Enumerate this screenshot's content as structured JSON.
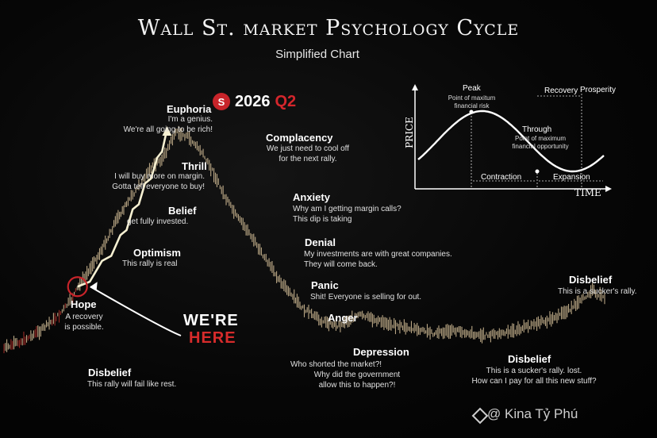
{
  "header": {
    "title": "Wall St. market Psychology Cycle",
    "subtitle": "Simplified Chart"
  },
  "badge": {
    "icon": "s-circle-icon",
    "year": "2026",
    "quarter": "Q2"
  },
  "marker": {
    "line1": "WE'RE",
    "line2": "HERE"
  },
  "phases": [
    {
      "name": "Hope",
      "quote": [
        "A recovery",
        "is possible."
      ]
    },
    {
      "name": "Optimism",
      "quote": [
        "This rally is real"
      ]
    },
    {
      "name": "Belief",
      "quote": [
        "get fully invested."
      ]
    },
    {
      "name": "Thrill",
      "quote": [
        "I will buy more on margin.",
        "Gotta tell everyone to buy!"
      ]
    },
    {
      "name": "Euphoria",
      "quote": [
        "I'm a genius.",
        "We're all going to be rich!"
      ]
    },
    {
      "name": "Complacency",
      "quote": [
        "We just need to cool off",
        "for the next rally."
      ]
    },
    {
      "name": "Anxiety",
      "quote": [
        "Why am I getting margin calls?",
        "This dip is taking"
      ]
    },
    {
      "name": "Denial",
      "quote": [
        "My investments are with great companies.",
        "They will come back."
      ]
    },
    {
      "name": "Panic",
      "quote": [
        "Shit! Everyone is selling for out."
      ]
    },
    {
      "name": "Anger",
      "quote": []
    },
    {
      "name": "Depression",
      "quote": [
        "Who shorted the market?!",
        "Why did the government",
        "allow this to happen?!"
      ]
    },
    {
      "name": "Disbelief",
      "quote": [
        "This is a sucker's  rally. lost.",
        "How can I pay for all this new stuff?"
      ]
    },
    {
      "name": "Disbelief",
      "quote": [
        "This is a sucker's rally."
      ]
    },
    {
      "name": "Disbelief",
      "quote": [
        "This rally will fail like rest."
      ]
    }
  ],
  "inset": {
    "xlabel": "TIME",
    "ylabel": "PRICE",
    "peak": "Peak",
    "peak_note": [
      "Point of maxitum",
      "financial risk"
    ],
    "through": "Through",
    "through_note": [
      "Point of maximum",
      "financial opportunity"
    ],
    "recovery": "Recovery",
    "prosperity": "Prosperity",
    "contraction": "Contraction",
    "expansion": "Expansion"
  },
  "watermark": "@ Kina Tỷ Phú",
  "colors": {
    "accent": "#c8242a",
    "price_line": "#d8c29a",
    "projection": "#f6f0d2",
    "text": "#ffffff"
  },
  "chart_data": {
    "type": "line",
    "title": "Wall St. market Psychology Cycle",
    "subtitle": "Simplified Chart",
    "series": [
      {
        "values": [
          [
            0,
            11
          ],
          [
            15,
            14
          ],
          [
            30,
            18
          ],
          [
            45,
            24
          ],
          [
            55,
            30
          ],
          [
            62,
            36
          ],
          [
            70,
            42
          ],
          [
            78,
            48
          ],
          [
            85,
            54
          ],
          [
            92,
            61
          ],
          [
            100,
            67
          ],
          [
            110,
            74
          ],
          [
            120,
            81
          ],
          [
            130,
            85
          ],
          [
            140,
            95
          ],
          [
            150,
            93
          ],
          [
            160,
            88
          ],
          [
            170,
            80
          ],
          [
            180,
            70
          ],
          [
            190,
            62
          ],
          [
            200,
            56
          ],
          [
            210,
            48
          ],
          [
            220,
            41
          ],
          [
            232,
            33
          ],
          [
            245,
            26
          ],
          [
            258,
            22
          ],
          [
            272,
            20
          ],
          [
            290,
            24
          ],
          [
            310,
            21
          ],
          [
            330,
            19
          ],
          [
            350,
            17
          ],
          [
            370,
            18
          ],
          [
            390,
            16
          ],
          [
            410,
            17
          ],
          [
            430,
            20
          ],
          [
            450,
            23
          ],
          [
            470,
            29
          ],
          [
            480,
            34
          ],
          [
            490,
            30
          ]
        ]
      }
    ],
    "projection": [
      [
        60,
        35
      ],
      [
        80,
        45
      ],
      [
        95,
        55
      ],
      [
        105,
        65
      ],
      [
        115,
        75
      ],
      [
        125,
        85
      ],
      [
        133,
        96
      ]
    ],
    "current_point": [
      60,
      35
    ],
    "annotations": [
      "Hope",
      "Optimism",
      "Belief",
      "Thrill",
      "Euphoria",
      "Complacency",
      "Anxiety",
      "Denial",
      "Panic",
      "Anger",
      "Depression",
      "Disbelief"
    ],
    "grid": false,
    "legend": "none",
    "inset": {
      "type": "line",
      "xlabel": "TIME",
      "ylabel": "PRICE",
      "phases": [
        "Contraction",
        "Expansion"
      ],
      "points": [
        "Peak",
        "Through"
      ]
    }
  }
}
